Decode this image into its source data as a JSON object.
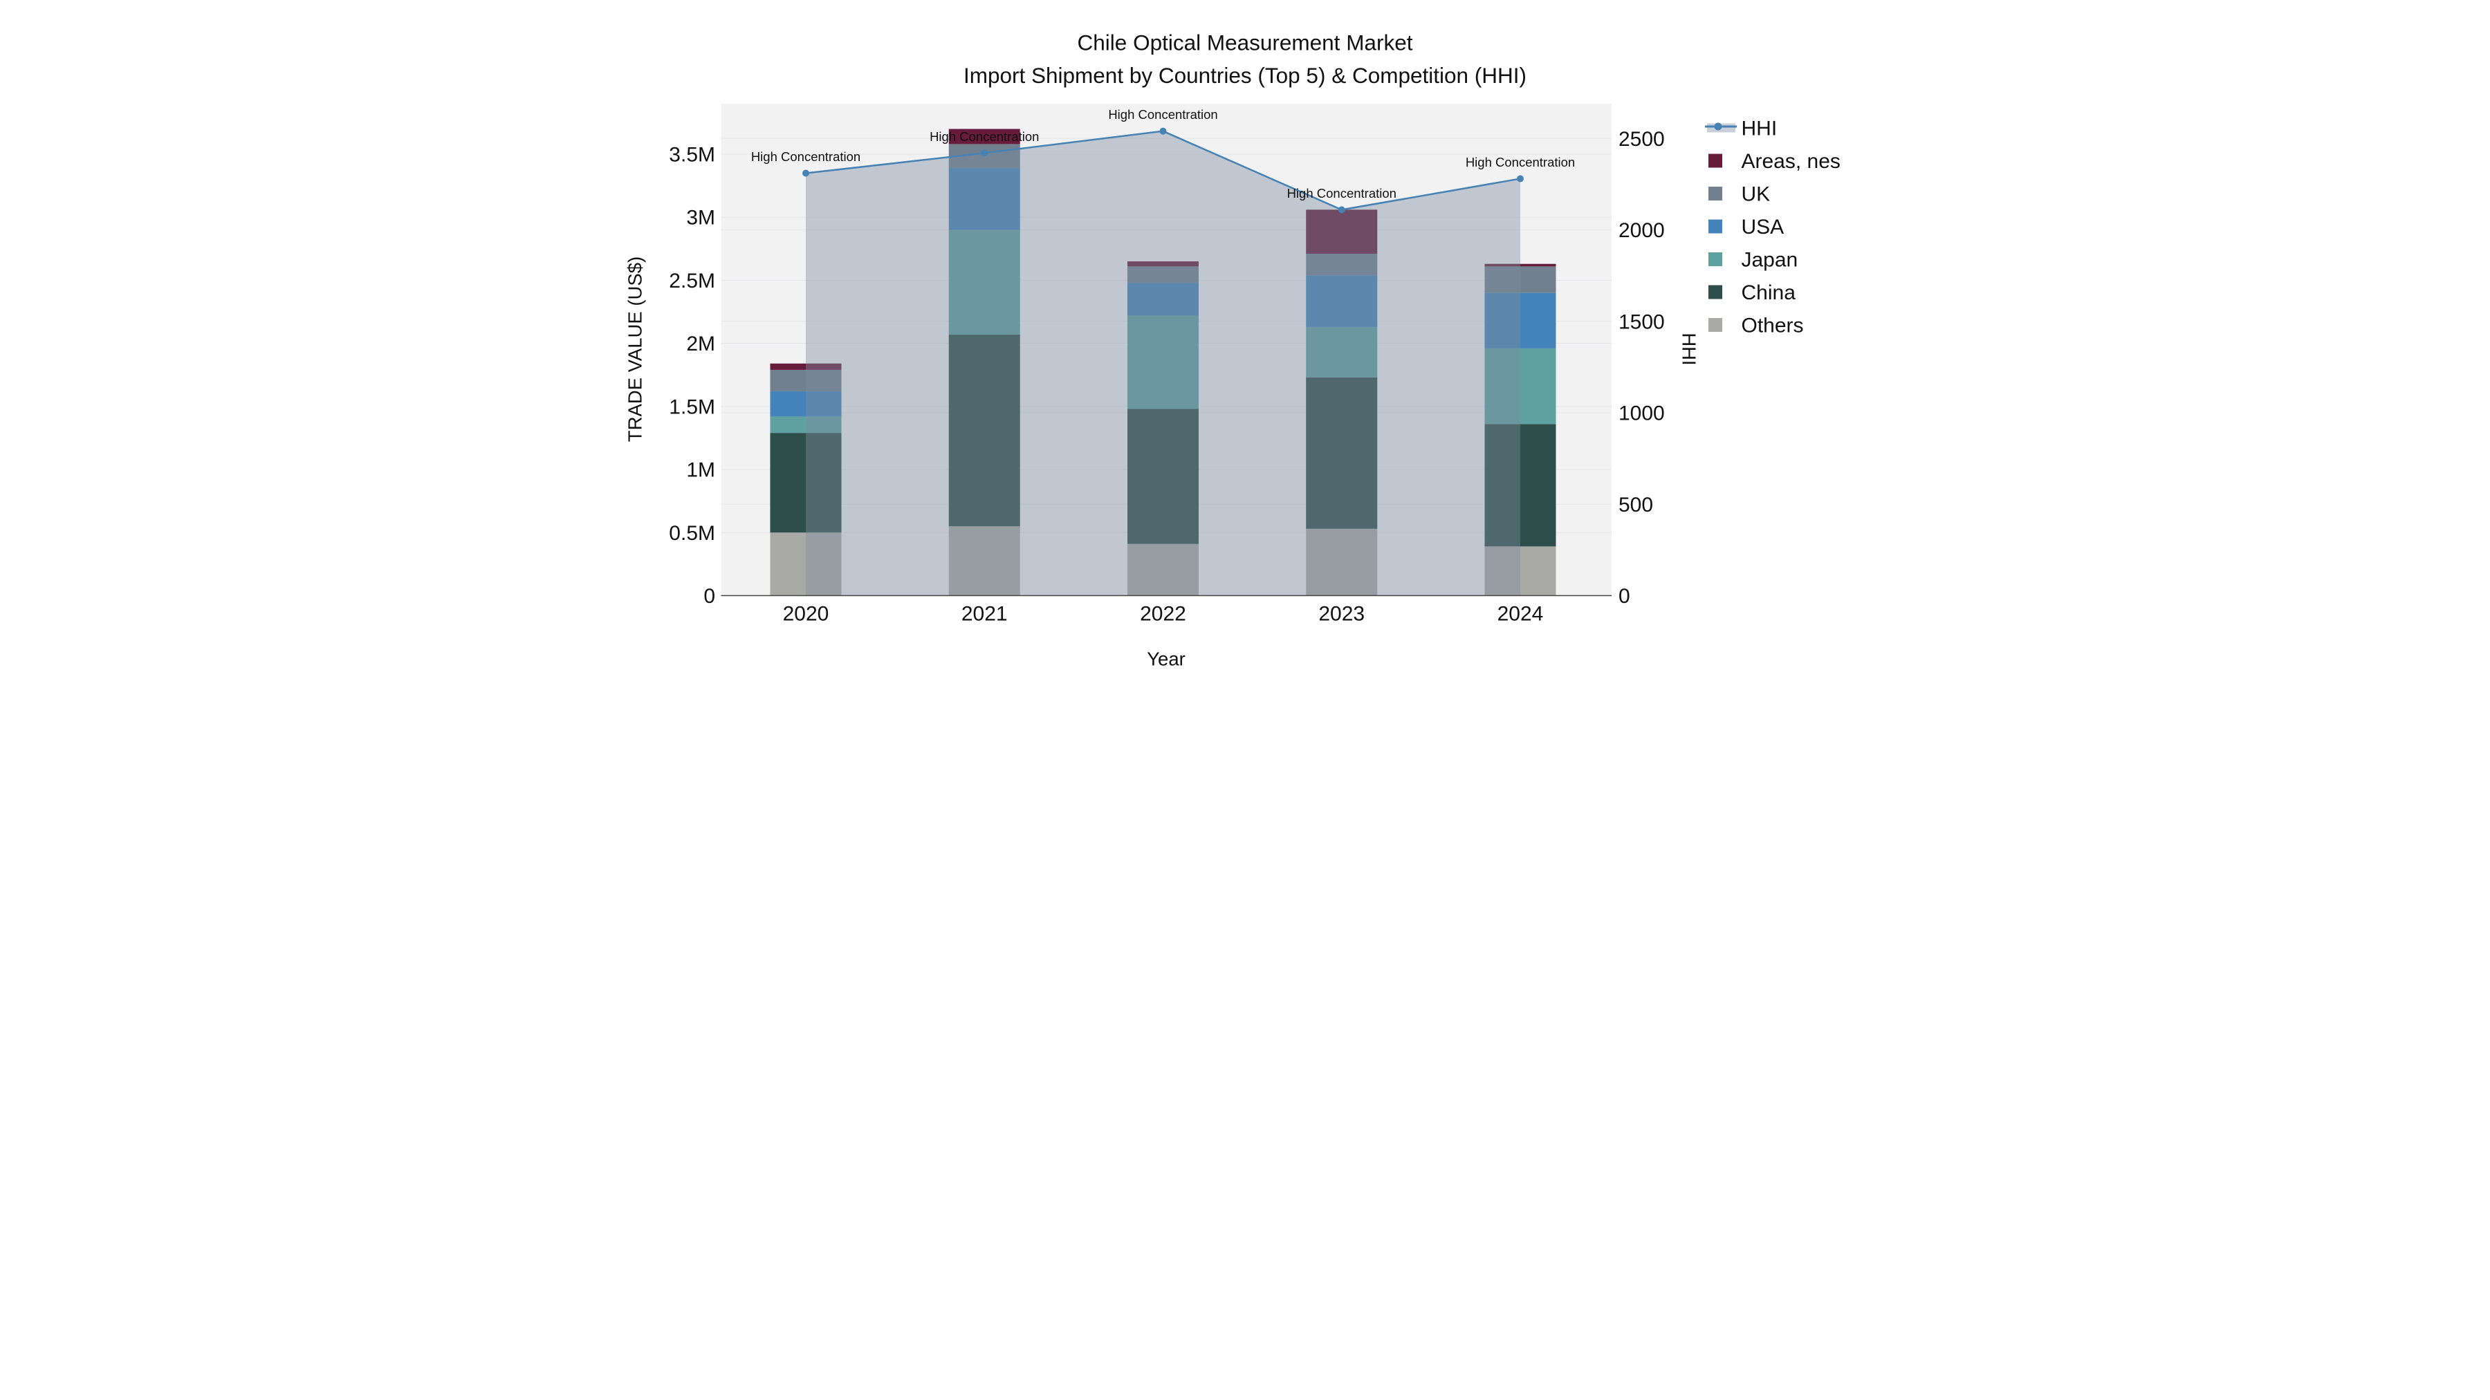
{
  "title": "Chile Optical Measurement Market",
  "subtitle": "Import Shipment by Countries (Top 5) & Competition (HHI)",
  "axes": {
    "x_title": "Year",
    "y_left_title": "TRADE VALUE (US$)",
    "y_right_title": "HHI",
    "y_left_max_m": 3.9,
    "y_right_max": 2690,
    "y_left_ticks": [
      {
        "value": 0,
        "label": "0"
      },
      {
        "value": 0.5,
        "label": "0.5M"
      },
      {
        "value": 1,
        "label": "1M"
      },
      {
        "value": 1.5,
        "label": "1.5M"
      },
      {
        "value": 2,
        "label": "2M"
      },
      {
        "value": 2.5,
        "label": "2.5M"
      },
      {
        "value": 3,
        "label": "3M"
      },
      {
        "value": 3.5,
        "label": "3.5M"
      }
    ],
    "y_right_ticks": [
      {
        "value": 0,
        "label": "0"
      },
      {
        "value": 500,
        "label": "500"
      },
      {
        "value": 1000,
        "label": "1000"
      },
      {
        "value": 1500,
        "label": "1500"
      },
      {
        "value": 2000,
        "label": "2000"
      },
      {
        "value": 2500,
        "label": "2500"
      }
    ]
  },
  "chart_data": {
    "type": "bar",
    "subtype": "stacked-bar-with-line",
    "categories": [
      "2020",
      "2021",
      "2022",
      "2023",
      "2024"
    ],
    "series": [
      {
        "name": "Others",
        "color": "#A9A9A6",
        "values": [
          0.5,
          0.55,
          0.41,
          0.53,
          0.39
        ]
      },
      {
        "name": "China",
        "color": "#2E4E4B",
        "values": [
          0.79,
          1.52,
          1.07,
          1.2,
          0.97
        ]
      },
      {
        "name": "Japan",
        "color": "#5FA0A0",
        "values": [
          0.13,
          0.83,
          0.74,
          0.4,
          0.6
        ]
      },
      {
        "name": "USA",
        "color": "#4583BB",
        "values": [
          0.2,
          0.49,
          0.26,
          0.41,
          0.44
        ]
      },
      {
        "name": "UK",
        "color": "#71808F",
        "values": [
          0.17,
          0.19,
          0.13,
          0.17,
          0.21
        ]
      },
      {
        "name": "Areas, nes",
        "color": "#671C3C",
        "values": [
          0.05,
          0.12,
          0.04,
          0.35,
          0.02
        ]
      }
    ],
    "line_series": {
      "name": "HHI",
      "axis": "right",
      "color": "#4682B4",
      "area_fill": "rgba(125,140,160,0.42)",
      "values": [
        2310,
        2420,
        2540,
        2110,
        2280
      ]
    },
    "annotations": [
      {
        "category": "2020",
        "text": "High Concentration"
      },
      {
        "category": "2021",
        "text": "High Concentration"
      },
      {
        "category": "2022",
        "text": "High Concentration"
      },
      {
        "category": "2023",
        "text": "High Concentration"
      },
      {
        "category": "2024",
        "text": "High Concentration"
      }
    ],
    "title": "Chile Optical Measurement Market",
    "xlabel": "Year",
    "ylabel_left": "TRADE VALUE (US$)",
    "ylabel_right": "HHI",
    "ylim_left": [
      0,
      3900000
    ],
    "ylim_right": [
      0,
      2690
    ],
    "grid": true,
    "legend_position": "right"
  },
  "legend": {
    "items": [
      {
        "label": "HHI",
        "type": "line",
        "color": "#4682B4"
      },
      {
        "label": "Areas, nes",
        "type": "swatch",
        "color": "#671C3C"
      },
      {
        "label": "UK",
        "type": "swatch",
        "color": "#71808F"
      },
      {
        "label": "USA",
        "type": "swatch",
        "color": "#4583BB"
      },
      {
        "label": "Japan",
        "type": "swatch",
        "color": "#5FA0A0"
      },
      {
        "label": "China",
        "type": "swatch",
        "color": "#2E4E4B"
      },
      {
        "label": "Others",
        "type": "swatch",
        "color": "#A9A9A6"
      }
    ]
  },
  "colors": {
    "plot_background": "#F2F2F3",
    "gridline": "#E3E5E8",
    "axis_line": "#444444",
    "text": "#111111",
    "hhi_line": "#4682B4",
    "hhi_area": "rgba(125,140,160,0.42)"
  }
}
